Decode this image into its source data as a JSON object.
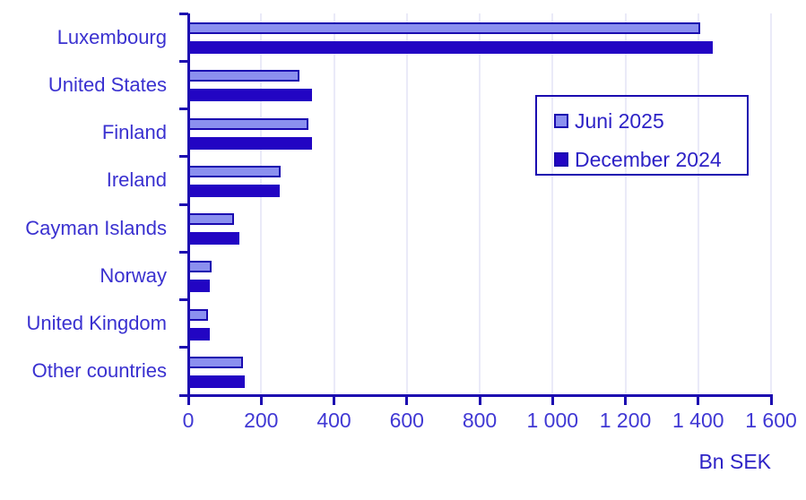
{
  "chart_data": {
    "type": "bar",
    "orientation": "horizontal",
    "title": "",
    "categories": [
      "Luxembourg",
      "United States",
      "Finland",
      "Ireland",
      "Cayman Islands",
      "Norway",
      "United Kingdom",
      "Other countries"
    ],
    "series": [
      {
        "name": "Juni 2025",
        "values": [
          1405,
          306,
          331,
          253,
          125,
          63,
          55,
          151
        ]
      },
      {
        "name": "December 2024",
        "values": [
          1440,
          340,
          340,
          252,
          140,
          60,
          58,
          156
        ]
      }
    ],
    "xlabel": "Bn SEK",
    "ylabel": "",
    "xlim": [
      0,
      1600
    ],
    "xticks": [
      0,
      200,
      400,
      600,
      800,
      1000,
      1200,
      1400,
      1600
    ],
    "xtick_labels": [
      "0",
      "200",
      "400",
      "600",
      "800",
      "1 000",
      "1 200",
      "1 400",
      "1 600"
    ],
    "grid": "vertical-light",
    "legend_position": "inside-top-right"
  },
  "colors": {
    "series_fills": [
      "#8B90EF",
      "#2205C3"
    ],
    "bar_border": "#1A09B0",
    "axis": "#1C0BB0",
    "gridline": "#EAEAF8",
    "tick_label_text": "#4038D4",
    "category_text": "#3A31D0",
    "legend_text": "#2D22C6",
    "background": "#FFFFFF"
  }
}
